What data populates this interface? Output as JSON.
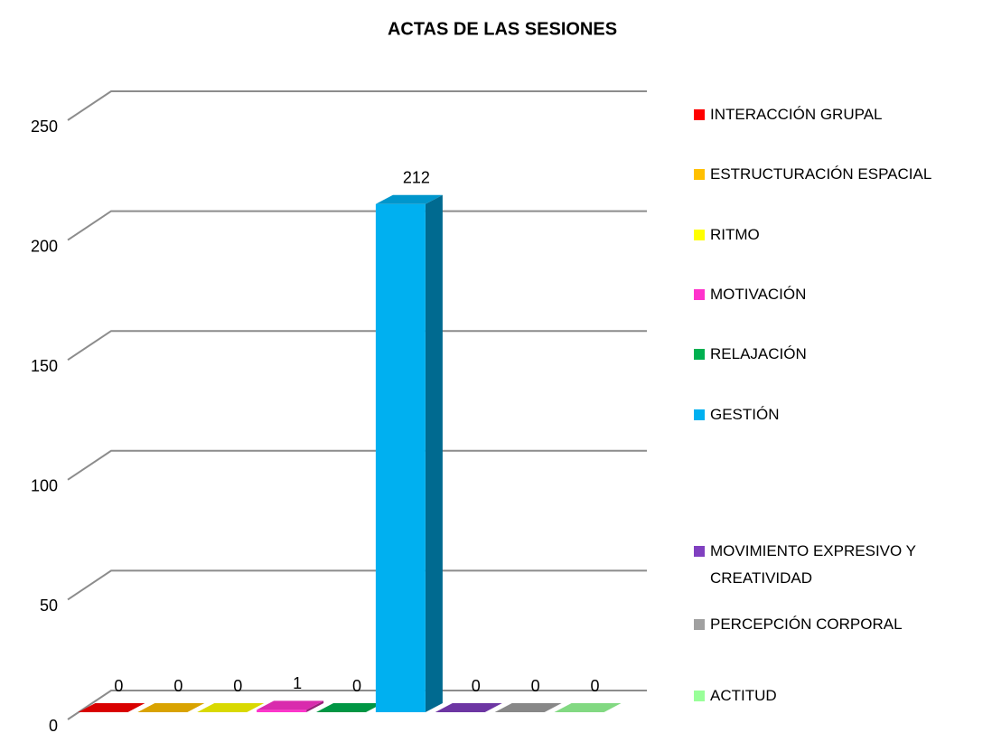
{
  "chart_data": {
    "type": "bar3d",
    "title": "ACTAS DE LAS SESIONES",
    "series": [
      {
        "name": "INTERACCIÓN GRUPAL",
        "color": "#ff0000",
        "values": [
          0
        ]
      },
      {
        "name": "ESTRUCTURACIÓN ESPACIAL",
        "color": "#ffc000",
        "values": [
          0
        ]
      },
      {
        "name": "RITMO",
        "color": "#ffff00",
        "values": [
          0
        ]
      },
      {
        "name": "MOTIVACIÓN",
        "color": "#ff33cc",
        "values": [
          1
        ]
      },
      {
        "name": "RELAJACIÓN",
        "color": "#00b050",
        "values": [
          0
        ]
      },
      {
        "name": "GESTIÓN",
        "color": "#00b0f0",
        "values": [
          212
        ]
      },
      {
        "name": "MOVIMIENTO EXPRESIVO Y CREATIVIDAD",
        "color": "#8040c0",
        "values": [
          0
        ]
      },
      {
        "name": "PERCEPCIÓN CORPORAL",
        "color": "#a0a0a0",
        "values": [
          0
        ]
      },
      {
        "name": "ACTITUD",
        "color": "#99ff99",
        "values": [
          0
        ]
      }
    ],
    "ylim": [
      0,
      250
    ],
    "yticks": [
      0,
      50,
      100,
      150,
      200,
      250
    ],
    "grid": true,
    "legend": "right"
  }
}
